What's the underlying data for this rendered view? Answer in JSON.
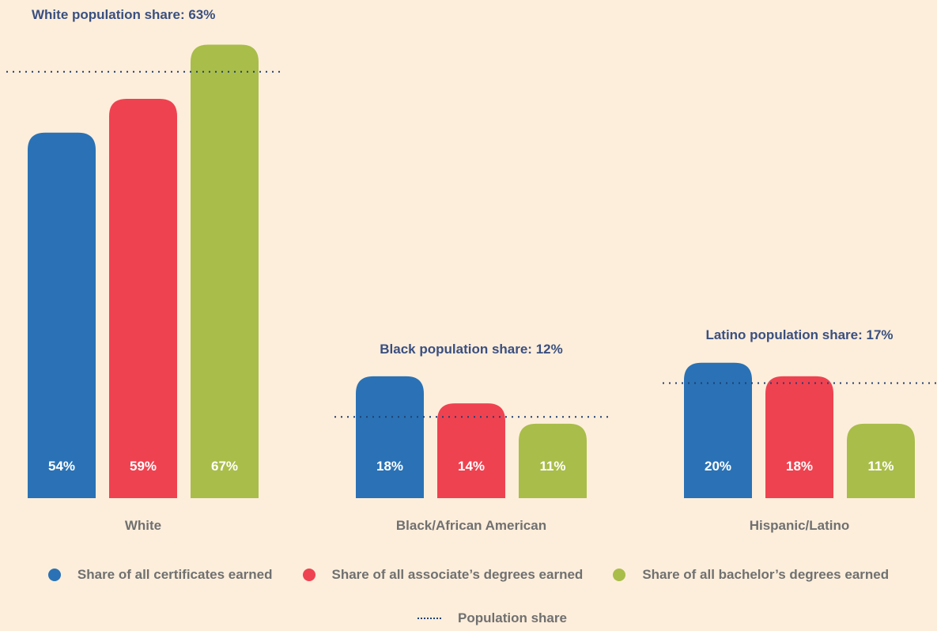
{
  "chart_data": {
    "type": "bar",
    "groups": [
      {
        "category": "White",
        "title": "White population share: 63%",
        "population_share": 63,
        "values": [
          54,
          59,
          67
        ],
        "labels": [
          "54%",
          "59%",
          "67%"
        ]
      },
      {
        "category": "Black/African American",
        "title": "Black population share: 12%",
        "population_share": 12,
        "values": [
          18,
          14,
          11
        ],
        "labels": [
          "18%",
          "14%",
          "11%"
        ]
      },
      {
        "category": "Hispanic/Latino",
        "title": "Latino population share: 17%",
        "population_share": 17,
        "values": [
          20,
          18,
          11
        ],
        "labels": [
          "20%",
          "18%",
          "11%"
        ]
      }
    ],
    "series": [
      {
        "name": "Share of all certificates earned",
        "color": "#2a72b5"
      },
      {
        "name": "Share of all associate’s degrees earned",
        "color": "#ef4250"
      },
      {
        "name": "Share of all bachelor’s degrees earned",
        "color": "#a9bd4a"
      }
    ],
    "population_legend": "Population share",
    "population_line_color": "#1f3f73"
  },
  "legend": {
    "certificates": "Share of all certificates earned",
    "associates": "Share of all associate’s degrees earned",
    "bachelors": "Share of all bachelor’s degrees earned",
    "population": "Population share"
  }
}
